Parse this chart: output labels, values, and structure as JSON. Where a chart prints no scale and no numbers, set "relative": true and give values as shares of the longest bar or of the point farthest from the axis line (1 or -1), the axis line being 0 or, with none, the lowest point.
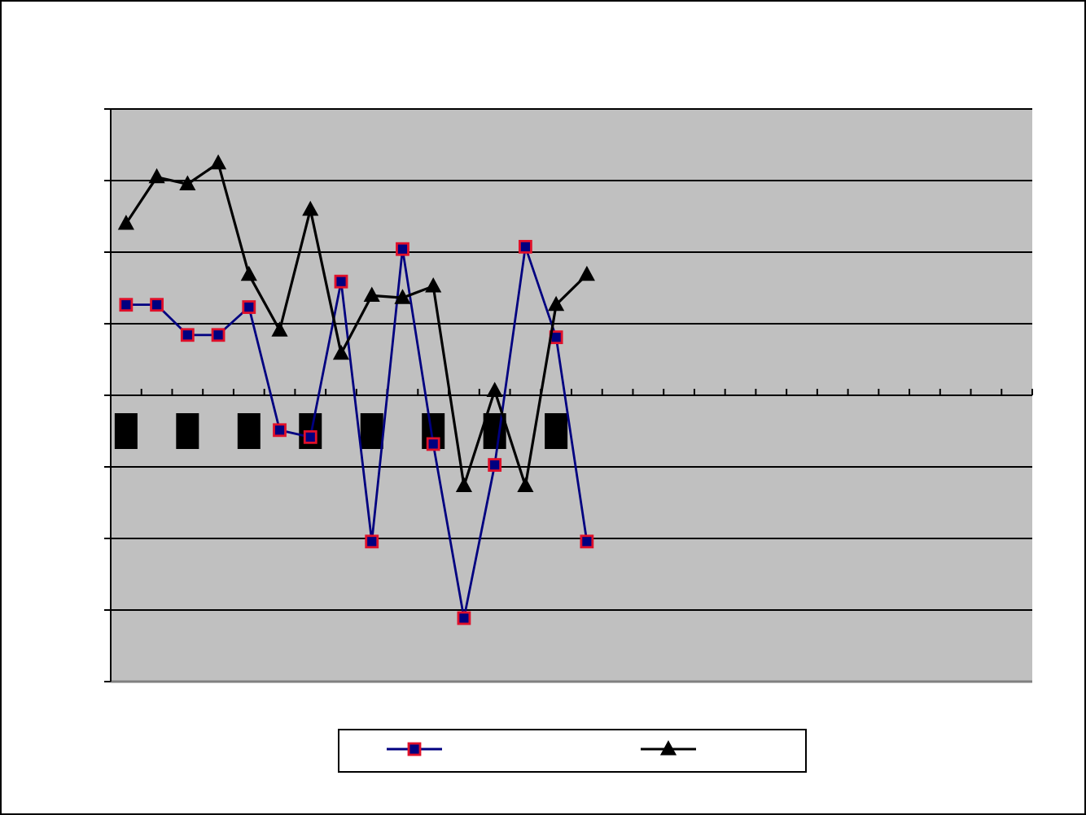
{
  "chart_data": {
    "type": "line",
    "relative": true,
    "categories": [
      null,
      null,
      null,
      null,
      null,
      null,
      null,
      null,
      null,
      null,
      null,
      null,
      null,
      null,
      null,
      null,
      null,
      null,
      null,
      null,
      null,
      null,
      null,
      null,
      null,
      null,
      null,
      null,
      null,
      null
    ],
    "series": [
      {
        "color": "#000080",
        "marker": "square",
        "values": [
          0.39,
          0.39,
          0.26,
          0.26,
          0.38,
          -0.15,
          -0.18,
          0.49,
          -0.63,
          0.63,
          -0.21,
          -0.96,
          -0.3,
          0.64,
          0.25,
          -0.63,
          null,
          null,
          null,
          null,
          null,
          null,
          null,
          null,
          null,
          null,
          null,
          null,
          null,
          null
        ]
      },
      {
        "color": "#000000",
        "marker": "triangle",
        "values": [
          0.74,
          0.94,
          0.91,
          1,
          0.52,
          0.28,
          0.8,
          0.18,
          0.43,
          0.42,
          0.47,
          -0.39,
          0.02,
          -0.39,
          0.39,
          0.52,
          null,
          null,
          null,
          null,
          null,
          null,
          null,
          null,
          null,
          null,
          null,
          null,
          null,
          null
        ]
      }
    ],
    "grid": "y"
  }
}
